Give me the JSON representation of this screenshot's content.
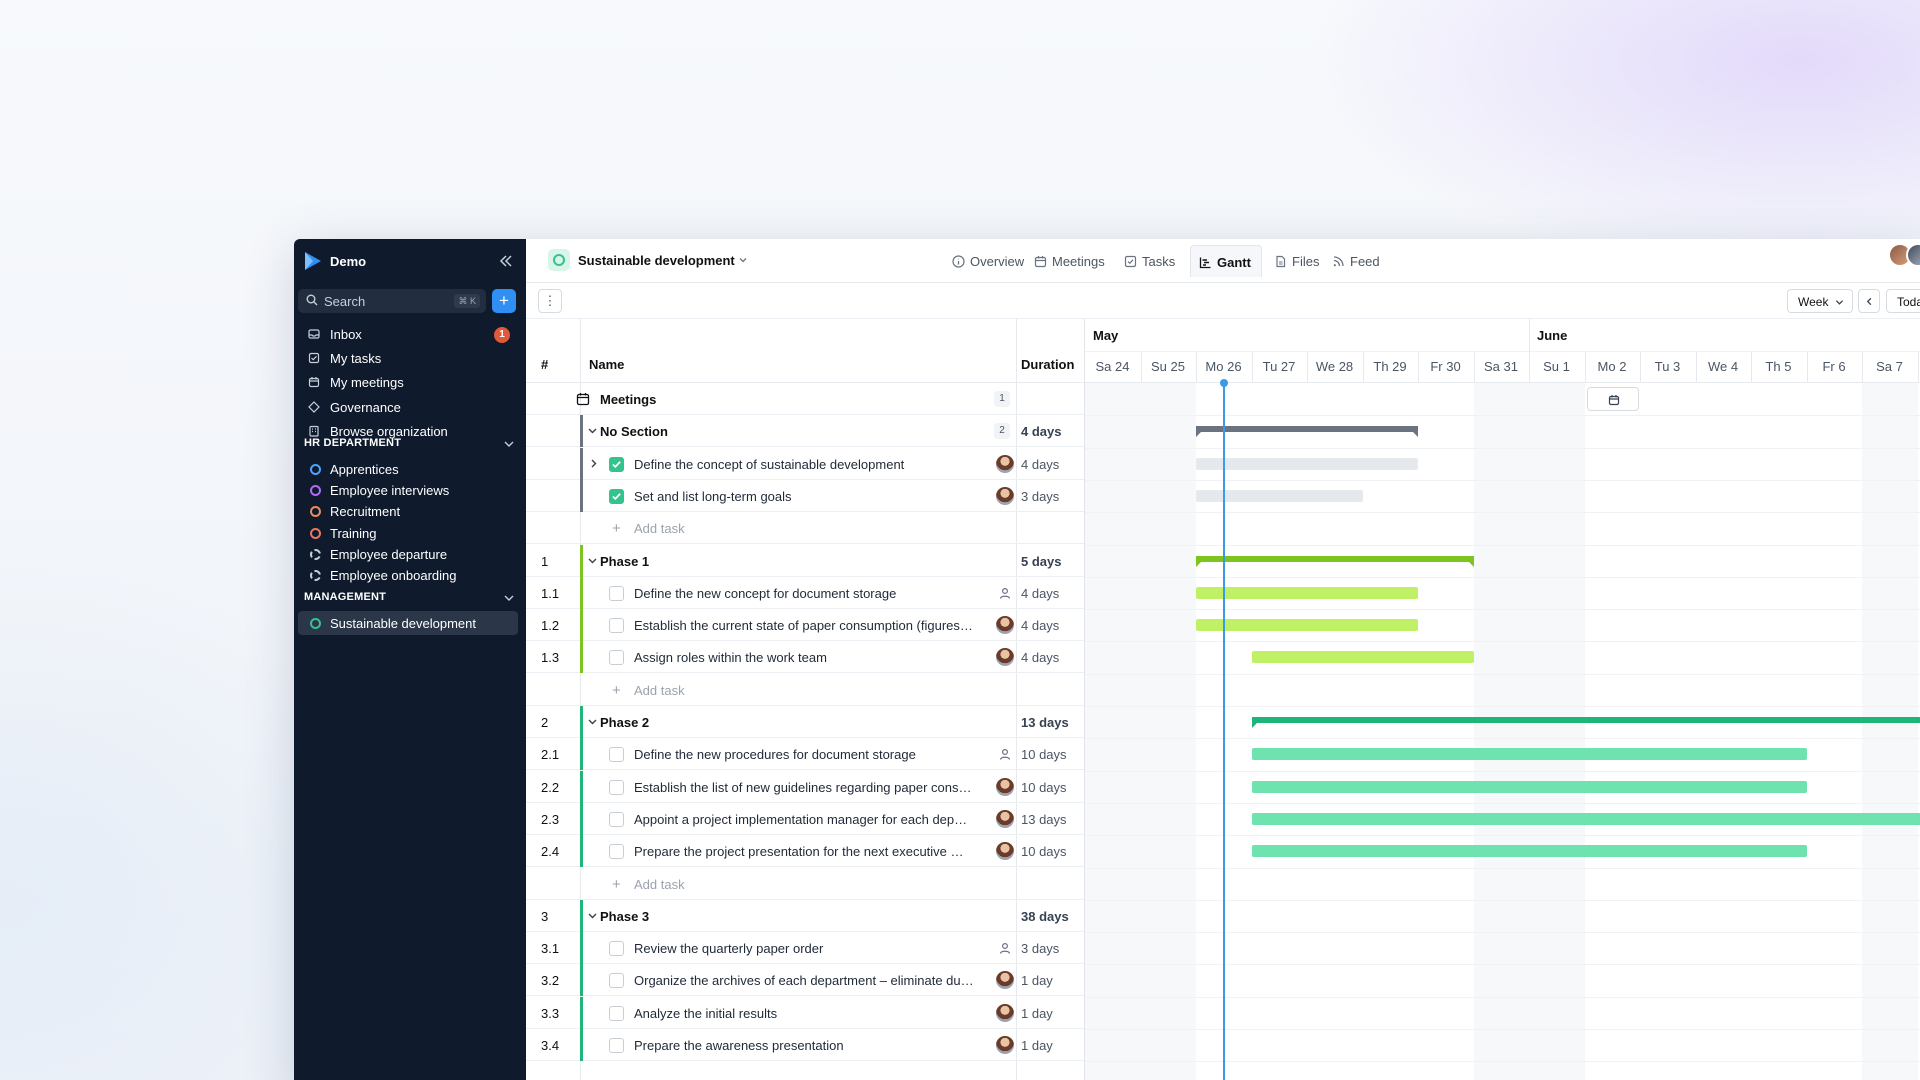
{
  "sidebar": {
    "workspace": "Demo",
    "search_placeholder": "Search",
    "search_shortcut": "⌘ K",
    "nav": [
      {
        "label": "Inbox",
        "badge": "1",
        "icon": "inbox-icon"
      },
      {
        "label": "My tasks",
        "icon": "checkbox-icon"
      },
      {
        "label": "My meetings",
        "icon": "calendar-icon"
      },
      {
        "label": "Governance",
        "icon": "governance-icon"
      },
      {
        "label": "Browse organization",
        "icon": "building-icon"
      }
    ],
    "sections": [
      {
        "title": "HR DEPARTMENT",
        "items": [
          {
            "label": "Apprentices",
            "color": "#4aa3ff",
            "style": "solid"
          },
          {
            "label": "Employee interviews",
            "color": "#b06cf0",
            "style": "solid"
          },
          {
            "label": "Recruitment",
            "color": "#f08a5a",
            "style": "solid"
          },
          {
            "label": "Training",
            "color": "#f0765a",
            "style": "solid"
          },
          {
            "label": "Employee departure",
            "color": "#c8cfdb",
            "style": "dashed"
          },
          {
            "label": "Employee onboarding",
            "color": "#c8cfdb",
            "style": "dashed"
          }
        ]
      },
      {
        "title": "MANAGEMENT",
        "items": [
          {
            "label": "Sustainable development",
            "color": "#34c38f",
            "style": "solid",
            "active": true
          }
        ]
      }
    ]
  },
  "header": {
    "project": "Sustainable development",
    "tabs": [
      {
        "label": "Overview",
        "icon": "info-icon"
      },
      {
        "label": "Meetings",
        "icon": "calendar-icon"
      },
      {
        "label": "Tasks",
        "icon": "checkbox-icon"
      },
      {
        "label": "Gantt",
        "icon": "gantt-icon",
        "active": true
      },
      {
        "label": "Files",
        "icon": "file-icon"
      },
      {
        "label": "Feed",
        "icon": "rss-icon"
      }
    ]
  },
  "toolbar": {
    "scale": "Week",
    "today": "Today"
  },
  "grid": {
    "columns": {
      "num": "#",
      "name": "Name",
      "duration": "Duration"
    },
    "add_task": "Add task",
    "rows": [
      {
        "type": "meetings",
        "name": "Meetings",
        "count": "1"
      },
      {
        "type": "section",
        "name": "No Section",
        "count": "2",
        "duration": "4 days",
        "color": "#6b7280"
      },
      {
        "type": "task",
        "name": "Define the concept of sustainable development",
        "duration": "4 days",
        "done": true,
        "expand": true,
        "assignee": "photo",
        "color": "#6b7280"
      },
      {
        "type": "task",
        "name": "Set and list long-term goals",
        "duration": "3 days",
        "done": true,
        "assignee": "photo",
        "color": "#6b7280"
      },
      {
        "type": "add"
      },
      {
        "type": "section",
        "num": "1",
        "name": "Phase 1",
        "duration": "5 days",
        "color": "#7cc520"
      },
      {
        "type": "task",
        "num": "1.1",
        "name": "Define the new concept for document storage",
        "duration": "4 days",
        "assignee": "none",
        "color": "#7cc520"
      },
      {
        "type": "task",
        "num": "1.2",
        "name": "Establish the current state of paper consumption (figures, amounts, costs)",
        "duration": "4 days",
        "assignee": "photo",
        "color": "#7cc520"
      },
      {
        "type": "task",
        "num": "1.3",
        "name": "Assign roles within the work team",
        "duration": "4 days",
        "assignee": "photo",
        "color": "#7cc520"
      },
      {
        "type": "add"
      },
      {
        "type": "section",
        "num": "2",
        "name": "Phase 2",
        "duration": "13 days",
        "color": "#1fb579"
      },
      {
        "type": "task",
        "num": "2.1",
        "name": "Define the new procedures for document storage",
        "duration": "10 days",
        "assignee": "none",
        "color": "#1fb579"
      },
      {
        "type": "task",
        "num": "2.2",
        "name": "Establish the list of new guidelines regarding paper consumption",
        "duration": "10 days",
        "assignee": "photo",
        "color": "#1fb579"
      },
      {
        "type": "task",
        "num": "2.3",
        "name": "Appoint a project implementation manager for each department",
        "duration": "13 days",
        "assignee": "photo",
        "color": "#1fb579"
      },
      {
        "type": "task",
        "num": "2.4",
        "name": "Prepare the project presentation for the next executive meeting",
        "duration": "10 days",
        "assignee": "photo",
        "color": "#1fb579"
      },
      {
        "type": "add"
      },
      {
        "type": "section",
        "num": "3",
        "name": "Phase 3",
        "duration": "38 days",
        "color": "#1fb579"
      },
      {
        "type": "task",
        "num": "3.1",
        "name": "Review the quarterly paper order",
        "duration": "3 days",
        "assignee": "none",
        "color": "#1fb579"
      },
      {
        "type": "task",
        "num": "3.2",
        "name": "Organize the archives of each department – eliminate duplicates",
        "duration": "1 day",
        "assignee": "photo",
        "color": "#1fb579"
      },
      {
        "type": "task",
        "num": "3.3",
        "name": "Analyze the initial results",
        "duration": "1 day",
        "assignee": "photo",
        "color": "#1fb579"
      },
      {
        "type": "task",
        "num": "3.4",
        "name": "Prepare the awareness presentation",
        "duration": "1 day",
        "assignee": "photo",
        "color": "#1fb579"
      }
    ]
  },
  "timeline": {
    "months": [
      {
        "label": "May",
        "start_day": 0
      },
      {
        "label": "June",
        "start_day": 8
      }
    ],
    "days": [
      {
        "label": "Sa 24",
        "weekend": true
      },
      {
        "label": "Su 25",
        "weekend": true
      },
      {
        "label": "Mo 26"
      },
      {
        "label": "Tu 27"
      },
      {
        "label": "We 28"
      },
      {
        "label": "Th 29"
      },
      {
        "label": "Fr 30"
      },
      {
        "label": "Sa 31",
        "weekend": true
      },
      {
        "label": "Su 1",
        "weekend": true
      },
      {
        "label": "Mo 2"
      },
      {
        "label": "Tu 3"
      },
      {
        "label": "We 4"
      },
      {
        "label": "Th 5"
      },
      {
        "label": "Fr 6"
      },
      {
        "label": "Sa 7",
        "weekend": true
      }
    ],
    "today_day": 2.0,
    "bars": [
      {
        "row": 1,
        "start": 2,
        "end": 6,
        "kind": "summary",
        "color": "#6b7280"
      },
      {
        "row": 2,
        "start": 2,
        "end": 6,
        "kind": "task",
        "color": "#e5e8ed"
      },
      {
        "row": 3,
        "start": 2,
        "end": 5,
        "kind": "task",
        "color": "#e5e8ed"
      },
      {
        "row": 5,
        "start": 2,
        "end": 7,
        "kind": "summary",
        "color": "#7cc520"
      },
      {
        "row": 6,
        "start": 2,
        "end": 6,
        "kind": "task",
        "color": "#bff066"
      },
      {
        "row": 7,
        "start": 2,
        "end": 6,
        "kind": "task",
        "color": "#bff066"
      },
      {
        "row": 8,
        "start": 3,
        "end": 7,
        "kind": "task",
        "color": "#bff066"
      },
      {
        "row": 10,
        "start": 3,
        "end": 16,
        "kind": "summary",
        "color": "#1fb579"
      },
      {
        "row": 11,
        "start": 3,
        "end": 13,
        "kind": "task",
        "color": "#6ee3b0"
      },
      {
        "row": 12,
        "start": 3,
        "end": 13,
        "kind": "task",
        "color": "#6ee3b0"
      },
      {
        "row": 13,
        "start": 3,
        "end": 16,
        "kind": "task",
        "color": "#6ee3b0"
      },
      {
        "row": 14,
        "start": 3,
        "end": 13,
        "kind": "task",
        "color": "#6ee3b0"
      }
    ]
  }
}
